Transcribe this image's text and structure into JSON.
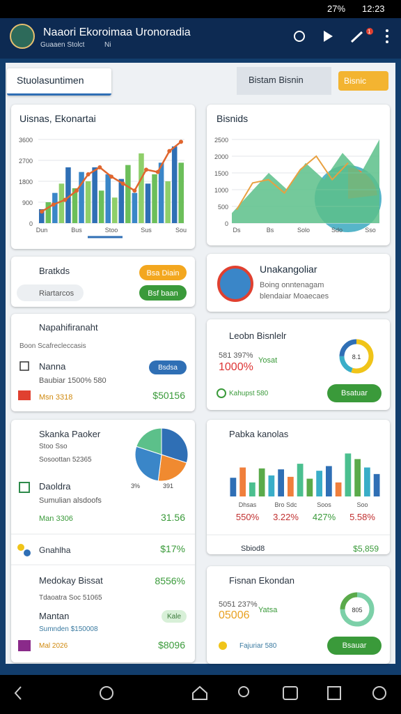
{
  "status_bar": {
    "battery": "27%",
    "time": "12:23"
  },
  "header": {
    "title": "Naaori Ekoroimaa Uronoradia",
    "subtitle": "Guaaen Stolct",
    "subtitle_2": "Ni",
    "badge": "1"
  },
  "filters": {
    "select_1": "Stuolasuntimen",
    "select_2": "Bistam Bisnin",
    "button": "Bisnic"
  },
  "card_1": {
    "title": "Uisnas, Ekonartai",
    "chart": {
      "ylim": [
        0,
        3600
      ],
      "yticks": [
        0,
        900,
        1800,
        2700,
        3600
      ],
      "categories": [
        "Dun",
        "Bus",
        "Stoo",
        "Sus",
        "Sou"
      ],
      "bars": [
        600,
        900,
        1300,
        1700,
        2400,
        1500,
        2200,
        1800,
        2400,
        1400,
        2100,
        1100,
        1900,
        2500,
        1300,
        3000,
        1700,
        2100,
        2600,
        1800,
        3300,
        2600
      ],
      "bar_colors": [
        "#2f6fb5",
        "#6cbf5a",
        "#3a86c8",
        "#8fcf6a"
      ],
      "line": [
        500,
        800,
        1000,
        1400,
        2100,
        2400,
        2000,
        1700,
        1400,
        2300,
        2200,
        3100,
        3500
      ],
      "line_color": "#e0662e"
    }
  },
  "card_2": {
    "title": "Bisnids",
    "chart": {
      "ylim": [
        0,
        2500
      ],
      "yticks": [
        0,
        500,
        1000,
        1500,
        2000,
        2500
      ],
      "categories": [
        "Ds",
        "Bs",
        "Solo",
        "Sdo",
        "Sso"
      ],
      "area": [
        300,
        900,
        1500,
        1000,
        1800,
        1300,
        2100,
        1500,
        2500
      ],
      "area_color": "#5cc08a",
      "line": [
        400,
        1200,
        1300,
        900,
        1600,
        2000,
        1300,
        1800
      ],
      "line_color": "#e8a040"
    }
  },
  "card_3": {
    "title": "Bratkds",
    "button_1": "Bsa Diain",
    "input": "Riartarcos",
    "button_2": "Bsf baan"
  },
  "card_4": {
    "title": "Unakangoliar",
    "line_1": "Boing onntenagam",
    "line_2": "blendaiar Moaecaes"
  },
  "card_5": {
    "title": "Napahifiranaht",
    "subtitle": "Boon Scafrecleccasis",
    "item": "Nanna",
    "item_detail": "Baubiar 1500% 580",
    "button": "Bsdsa",
    "footer_label": "Msn 3318",
    "footer_value": "$50156"
  },
  "card_6": {
    "title": "Leobn Bisnlelr",
    "stat_label": "581 397%",
    "stat_value": "1000%",
    "stat_note": "Yosat",
    "donut": {
      "label": "8.1",
      "values": [
        55,
        20,
        25
      ],
      "colors": [
        "#f0c419",
        "#3aaec8",
        "#2f6fb5"
      ]
    },
    "footer_label": "Kahupst 580",
    "button": "Bsatuar"
  },
  "card_7": {
    "title": "Skanka Paoker",
    "line_1": "Stoo Sso",
    "line_2": "Sosoottan 52365",
    "pie": {
      "values": [
        30,
        22,
        28,
        20
      ],
      "colors": [
        "#2f6fb5",
        "#f08a30",
        "#3a86c8",
        "#5cc08a"
      ],
      "labels": [
        "3%",
        "391"
      ]
    },
    "row_1_title": "Daoldra",
    "row_1_detail": "Sumulian alsdoofs",
    "row_2_label": "Man 3306",
    "row_2_value": "31.56",
    "row_3_label": "Gnahlha",
    "row_3_value": "$17%",
    "row_4_label": "Medokay Bissat",
    "row_4_value": "8556%",
    "row_4_detail": "Tdaoatra Soc 51065",
    "row_5_title": "Mantan",
    "row_5_chip": "Kale",
    "row_5_detail": "Sumnden $150008",
    "row_6_label": "Mal 2026",
    "row_6_value": "$8096"
  },
  "card_8": {
    "title": "Pabka kanolas",
    "chart": {
      "ylim": [
        0,
        100
      ],
      "bars": [
        40,
        62,
        30,
        60,
        45,
        58,
        42,
        70,
        38,
        55,
        65,
        30,
        92,
        80,
        62,
        48
      ],
      "colors": [
        "#2f6fb5",
        "#f07f3c",
        "#4bbf8f",
        "#5aaa4a",
        "#3aaec8"
      ],
      "categories": [
        "Dhsas",
        "Bro Sdc",
        "Soos",
        "Soo"
      ],
      "group_labels": [
        "550%",
        "3.22%",
        "427%",
        "5.58%"
      ]
    },
    "footer_label": "Sbiod8",
    "footer_value": "$5,859"
  },
  "card_9": {
    "title": "Fisnan Ekondan",
    "stat_label": "5051 237%",
    "stat_value": "05006",
    "stat_note": "Yatsa",
    "donut": {
      "label": "805",
      "values": [
        75,
        25
      ],
      "colors": [
        "#7cd0a8",
        "#5aaa4a"
      ]
    },
    "footer_label": "Fajuriar 580",
    "button": "Bsauar"
  }
}
